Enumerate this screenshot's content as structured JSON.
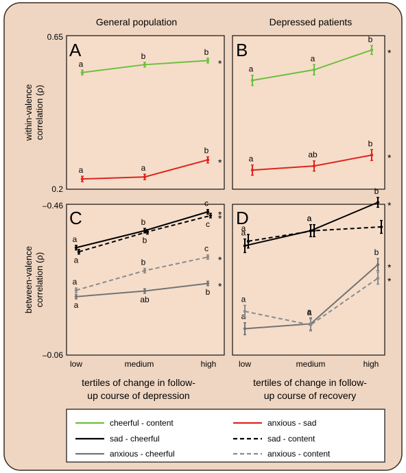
{
  "column_titles": [
    "General population",
    "Depressed patients"
  ],
  "y_axis_labels": {
    "top": [
      "within-valence",
      "correlation (ρ)"
    ],
    "bottom": [
      "between-valence",
      "correlation (ρ)"
    ]
  },
  "x_axis_labels": {
    "left": [
      "tertiles of change in follow-",
      "up course of depression"
    ],
    "right": [
      "tertiles of change in follow-",
      "up course of recovery"
    ]
  },
  "x_ticks": [
    "low",
    "medium",
    "high"
  ],
  "colors": {
    "panel_bg": "#f5ddca",
    "frame_bg": "#efd6c2",
    "green": "#6cbf3c",
    "red": "#e0231c",
    "black": "#000000",
    "gray": "#737373"
  },
  "legend": [
    {
      "key": "cheerful_content",
      "label": "cheerful - content",
      "color": "#6cbf3c",
      "dash": false
    },
    {
      "key": "anxious_sad",
      "label": "anxious - sad",
      "color": "#e0231c",
      "dash": false
    },
    {
      "key": "sad_cheerful",
      "label": "sad - cheerful",
      "color": "#000000",
      "dash": false
    },
    {
      "key": "sad_content",
      "label": "sad - content",
      "color": "#000000",
      "dash": true
    },
    {
      "key": "anxious_cheerful",
      "label": "anxious - cheerful",
      "color": "#737373",
      "dash": false
    },
    {
      "key": "anxious_content",
      "label": "anxious - content",
      "color": "#8a8a8a",
      "dash": true
    }
  ],
  "chart_data": [
    {
      "type": "line",
      "panel": "A",
      "ylim": [
        0.2,
        0.65
      ],
      "yticks": [
        "0.65",
        "0.2"
      ],
      "categories": [
        "low",
        "medium",
        "high"
      ],
      "series": [
        {
          "key": "cheerful_content",
          "color": "#6cbf3c",
          "dash": false,
          "values": [
            0.542,
            0.565,
            0.577
          ],
          "err": [
            0.007,
            0.007,
            0.007
          ],
          "sig": [
            "a",
            "b",
            "b"
          ],
          "star": true
        },
        {
          "key": "anxious_sad",
          "color": "#e0231c",
          "dash": false,
          "values": [
            0.23,
            0.236,
            0.286
          ],
          "err": [
            0.008,
            0.008,
            0.009
          ],
          "sig": [
            "a",
            "a",
            "b"
          ],
          "star": true
        }
      ]
    },
    {
      "type": "line",
      "panel": "B",
      "ylim": [
        0.2,
        0.65
      ],
      "categories": [
        "low",
        "medium",
        "high"
      ],
      "series": [
        {
          "key": "cheerful_content",
          "color": "#6cbf3c",
          "dash": false,
          "values": [
            0.519,
            0.55,
            0.608
          ],
          "err": [
            0.015,
            0.015,
            0.013
          ],
          "sig": [
            "a",
            "a",
            "b"
          ],
          "star": true
        },
        {
          "key": "anxious_sad",
          "color": "#e0231c",
          "dash": false,
          "values": [
            0.256,
            0.268,
            0.3
          ],
          "err": [
            0.015,
            0.015,
            0.016
          ],
          "sig": [
            "a",
            "ab",
            "b"
          ],
          "star": true
        }
      ]
    },
    {
      "type": "line",
      "panel": "C",
      "ylim": [
        -0.46,
        -0.06
      ],
      "yticks": [
        "–0.46",
        "–0.06"
      ],
      "categories": [
        "low",
        "medium",
        "high"
      ],
      "series": [
        {
          "key": "sad_cheerful",
          "color": "#000000",
          "dash": false,
          "values": [
            -0.345,
            -0.39,
            -0.44
          ],
          "err": [
            0.006,
            0.006,
            0.006
          ],
          "sig": [
            "a",
            "b",
            "c"
          ],
          "star": true
        },
        {
          "key": "sad_content",
          "color": "#000000",
          "dash": true,
          "values": [
            -0.334,
            -0.387,
            -0.43
          ],
          "err": [
            0.006,
            0.006,
            0.006
          ],
          "sig": [
            "a",
            "b",
            "c"
          ],
          "star": true
        },
        {
          "key": "anxious_content",
          "color": "#8a8a8a",
          "dash": true,
          "values": [
            -0.232,
            -0.284,
            -0.32
          ],
          "err": [
            0.006,
            0.006,
            0.006
          ],
          "sig": [
            "a",
            "b",
            "c"
          ],
          "star": true
        },
        {
          "key": "anxious_cheerful",
          "color": "#737373",
          "dash": false,
          "values": [
            -0.215,
            -0.23,
            -0.25
          ],
          "err": [
            0.006,
            0.006,
            0.006
          ],
          "sig": [
            "a",
            "ab",
            "b"
          ],
          "star": true
        }
      ]
    },
    {
      "type": "line",
      "panel": "D",
      "ylim": [
        -0.46,
        -0.06
      ],
      "categories": [
        "low",
        "medium",
        "high"
      ],
      "series": [
        {
          "key": "sad_cheerful",
          "color": "#000000",
          "dash": false,
          "values": [
            -0.35,
            -0.39,
            -0.465
          ],
          "err": [
            0.018,
            0.016,
            0.013
          ],
          "sig": [
            "a",
            "a",
            "b"
          ],
          "star": true
        },
        {
          "key": "sad_content",
          "color": "#000000",
          "dash": true,
          "values": [
            -0.362,
            -0.39,
            -0.4
          ],
          "err": [
            0.018,
            0.016,
            0.017
          ],
          "sig": [
            "a",
            "a",
            ""
          ],
          "star": false
        },
        {
          "key": "anxious_cheerful",
          "color": "#737373",
          "dash": false,
          "values": [
            -0.13,
            -0.143,
            -0.3
          ],
          "err": [
            0.016,
            0.016,
            0.016
          ],
          "sig": [
            "a",
            "a",
            "b"
          ],
          "star": true
        },
        {
          "key": "anxious_content",
          "color": "#8a8a8a",
          "dash": true,
          "values": [
            -0.176,
            -0.14,
            -0.264
          ],
          "err": [
            0.016,
            0.016,
            0.016
          ],
          "sig": [
            "a",
            "a",
            ""
          ],
          "star": true
        }
      ]
    }
  ],
  "star_symbol": "*"
}
